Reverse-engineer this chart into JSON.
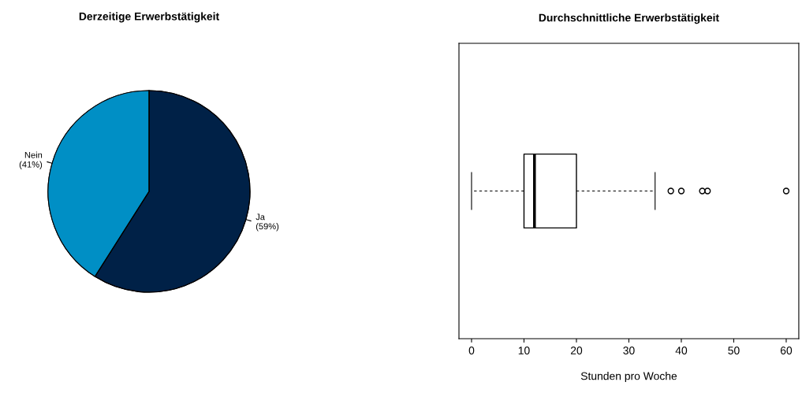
{
  "chart_data": [
    {
      "type": "pie",
      "title": "Derzeitige Erwerbstätigkeit",
      "categories": [
        "Ja",
        "Nein"
      ],
      "values": [
        59,
        41
      ],
      "colors": [
        "#002147",
        "#008fc5"
      ],
      "value_labels": [
        "(59%)",
        "(41%)"
      ]
    },
    {
      "type": "box",
      "title": "Durchschnittliche Erwerbstätigkeit",
      "xlabel": "Stunden pro Woche",
      "orientation": "horizontal",
      "categories": [
        null
      ],
      "xlim": [
        -2.4,
        62.4
      ],
      "xticks": [
        0,
        10,
        20,
        30,
        40,
        50,
        60
      ],
      "boxes": [
        {
          "low": 0,
          "q1": 10,
          "median": 12,
          "q3": 20,
          "high": 35,
          "outliers": [
            38,
            40,
            44,
            45,
            60
          ]
        }
      ],
      "tick_labels": "x"
    }
  ]
}
